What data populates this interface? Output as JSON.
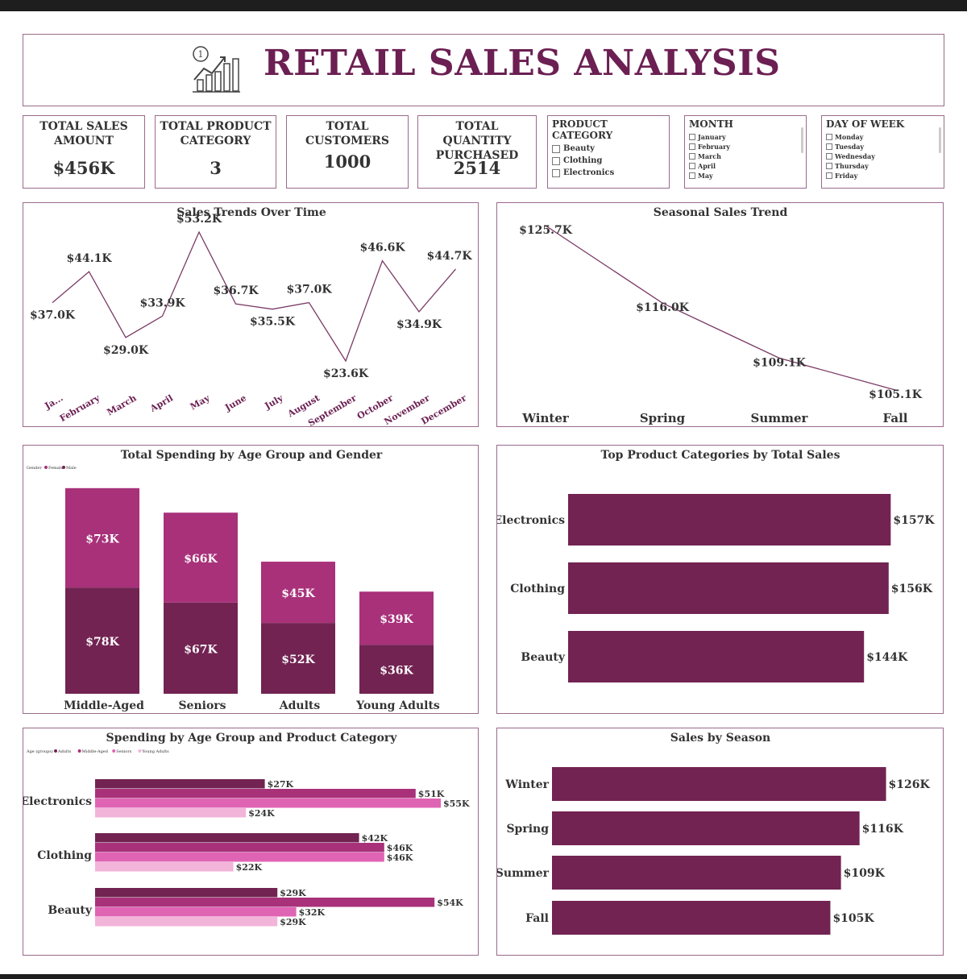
{
  "header": {
    "title": "RETAIL SALES ANALYSIS",
    "icon": "growth-chart-icon"
  },
  "kpis": [
    {
      "label_line1": "TOTAL SALES",
      "label_line2": "AMOUNT",
      "value": "$456K"
    },
    {
      "label_line1": "TOTAL PRODUCT",
      "label_line2": "CATEGORY",
      "value": "3"
    },
    {
      "label_line1": "TOTAL CUSTOMERS",
      "label_line2": "",
      "value": "1000"
    },
    {
      "label_line1": "TOTAL QUANTITY",
      "label_line2": "PURCHASED",
      "value": "2514"
    }
  ],
  "slicers": {
    "category": {
      "title": "PRODUCT CATEGORY",
      "items": [
        "Beauty",
        "Clothing",
        "Electronics"
      ]
    },
    "month": {
      "title": "MONTH",
      "items": [
        "January",
        "February",
        "March",
        "April",
        "May"
      ]
    },
    "day": {
      "title": "DAY OF WEEK",
      "items": [
        "Monday",
        "Tuesday",
        "Wednesday",
        "Thursday",
        "Friday"
      ]
    }
  },
  "colors": {
    "dark": "#722352",
    "medium": "#a8317a",
    "pink": "#e064b4",
    "light": "#f3b4da",
    "border": "#9a6a8a",
    "line": "#7a3a66"
  },
  "chart_data": [
    {
      "id": "sales-trend",
      "type": "line",
      "title": "Sales Trends Over Time",
      "categories": [
        "Ja...",
        "February",
        "March",
        "April",
        "May",
        "June",
        "July",
        "August",
        "September",
        "October",
        "November",
        "December"
      ],
      "values": [
        37.0,
        44.1,
        29.0,
        33.9,
        53.2,
        36.7,
        35.5,
        37.0,
        23.6,
        46.6,
        34.9,
        44.7
      ],
      "labels": [
        "$37.0K",
        "$44.1K",
        "$29.0K",
        "$33.9K",
        "$53.2K",
        "$36.7K",
        "$35.5K",
        "$37.0K",
        "$23.6K",
        "$46.6K",
        "$34.9K",
        "$44.7K"
      ]
    },
    {
      "id": "seasonal-trend",
      "type": "line",
      "title": "Seasonal Sales Trend",
      "categories": [
        "Winter",
        "Spring",
        "Summer",
        "Fall"
      ],
      "values": [
        125.7,
        116.0,
        109.1,
        105.1
      ],
      "labels": [
        "$125.7K",
        "$116.0K",
        "$109.1K",
        "$105.1K"
      ]
    },
    {
      "id": "age-gender",
      "type": "bar",
      "stacked": true,
      "title": "Total Spending by Age Group and Gender",
      "legend_title": "Gender",
      "categories": [
        "Middle-Aged",
        "Seniors",
        "Adults",
        "Young Adults"
      ],
      "series": [
        {
          "name": "Male",
          "values": [
            78,
            67,
            52,
            36
          ],
          "labels": [
            "$78K",
            "$67K",
            "$52K",
            "$36K"
          ]
        },
        {
          "name": "Female",
          "values": [
            73,
            66,
            45,
            39
          ],
          "labels": [
            "$73K",
            "$66K",
            "$45K",
            "$39K"
          ]
        }
      ]
    },
    {
      "id": "top-categories",
      "type": "bar",
      "orientation": "horizontal",
      "title": "Top Product Categories by Total Sales",
      "categories": [
        "Electronics",
        "Clothing",
        "Beauty"
      ],
      "values": [
        157,
        156,
        144
      ],
      "labels": [
        "$157K",
        "$156K",
        "$144K"
      ]
    },
    {
      "id": "age-category",
      "type": "bar",
      "orientation": "horizontal",
      "title": "Spending by Age Group and Product Category",
      "legend_title": "Age (groups)",
      "categories": [
        "Electronics",
        "Clothing",
        "Beauty"
      ],
      "series": [
        {
          "name": "Adults",
          "values": [
            27,
            42,
            29
          ],
          "labels": [
            "$27K",
            "$42K",
            "$29K"
          ]
        },
        {
          "name": "Middle-Aged",
          "values": [
            51,
            46,
            54
          ],
          "labels": [
            "$51K",
            "$46K",
            "$54K"
          ]
        },
        {
          "name": "Seniors",
          "values": [
            55,
            46,
            32
          ],
          "labels": [
            "$55K",
            "$46K",
            "$32K"
          ]
        },
        {
          "name": "Young Adults",
          "values": [
            24,
            22,
            29
          ],
          "labels": [
            "$24K",
            "$22K",
            "$29K"
          ]
        }
      ]
    },
    {
      "id": "sales-season",
      "type": "bar",
      "orientation": "horizontal",
      "title": "Sales by Season",
      "categories": [
        "Winter",
        "Spring",
        "Summer",
        "Fall"
      ],
      "values": [
        126,
        116,
        109,
        105
      ],
      "labels": [
        "$126K",
        "$116K",
        "$109K",
        "$105K"
      ]
    }
  ]
}
